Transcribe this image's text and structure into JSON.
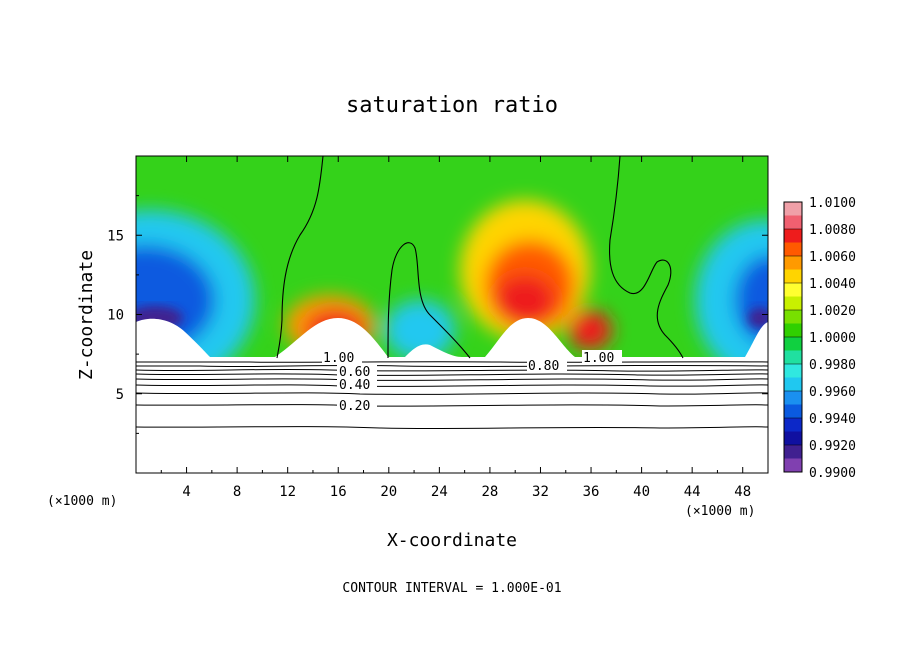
{
  "chart_data": {
    "type": "heatmap",
    "title": "saturation ratio",
    "xlabel": "X-coordinate",
    "ylabel": "Z-coordinate",
    "x_unit": "(×1000 m)",
    "y_unit": "(×1000 m)",
    "footnote": "CONTOUR INTERVAL = 1.000E-01",
    "xlim": [
      0,
      50
    ],
    "ylim": [
      0,
      20
    ],
    "x_ticks": [
      "4",
      "8",
      "12",
      "16",
      "20",
      "24",
      "28",
      "32",
      "36",
      "40",
      "44",
      "48"
    ],
    "y_ticks": [
      "5",
      "10",
      "15"
    ],
    "colorbar": {
      "range": [
        0.99,
        1.01
      ],
      "labels": [
        "1.0100",
        "1.0080",
        "1.0060",
        "1.0040",
        "1.0020",
        "1.0000",
        "0.9980",
        "0.9960",
        "0.9940",
        "0.9920",
        "0.9900"
      ],
      "colors": [
        "#f0a0a8",
        "#f06070",
        "#ee1c1c",
        "#ff5a00",
        "#ff9a00",
        "#ffd400",
        "#ffff30",
        "#c8f000",
        "#78e000",
        "#30d000",
        "#10d040",
        "#20e0a0",
        "#30e8e0",
        "#20c8f0",
        "#1a90f0",
        "#0a5ae0",
        "#0c28c8",
        "#1010a0",
        "#402090",
        "#8040b0"
      ]
    },
    "contour_labels": [
      "1.00",
      "0.60",
      "0.40",
      "0.20",
      "0.80",
      "1.00"
    ],
    "terrain_ridges_x": [
      2,
      16,
      21,
      31,
      49
    ],
    "grid": false,
    "legend": "colorbar right"
  }
}
